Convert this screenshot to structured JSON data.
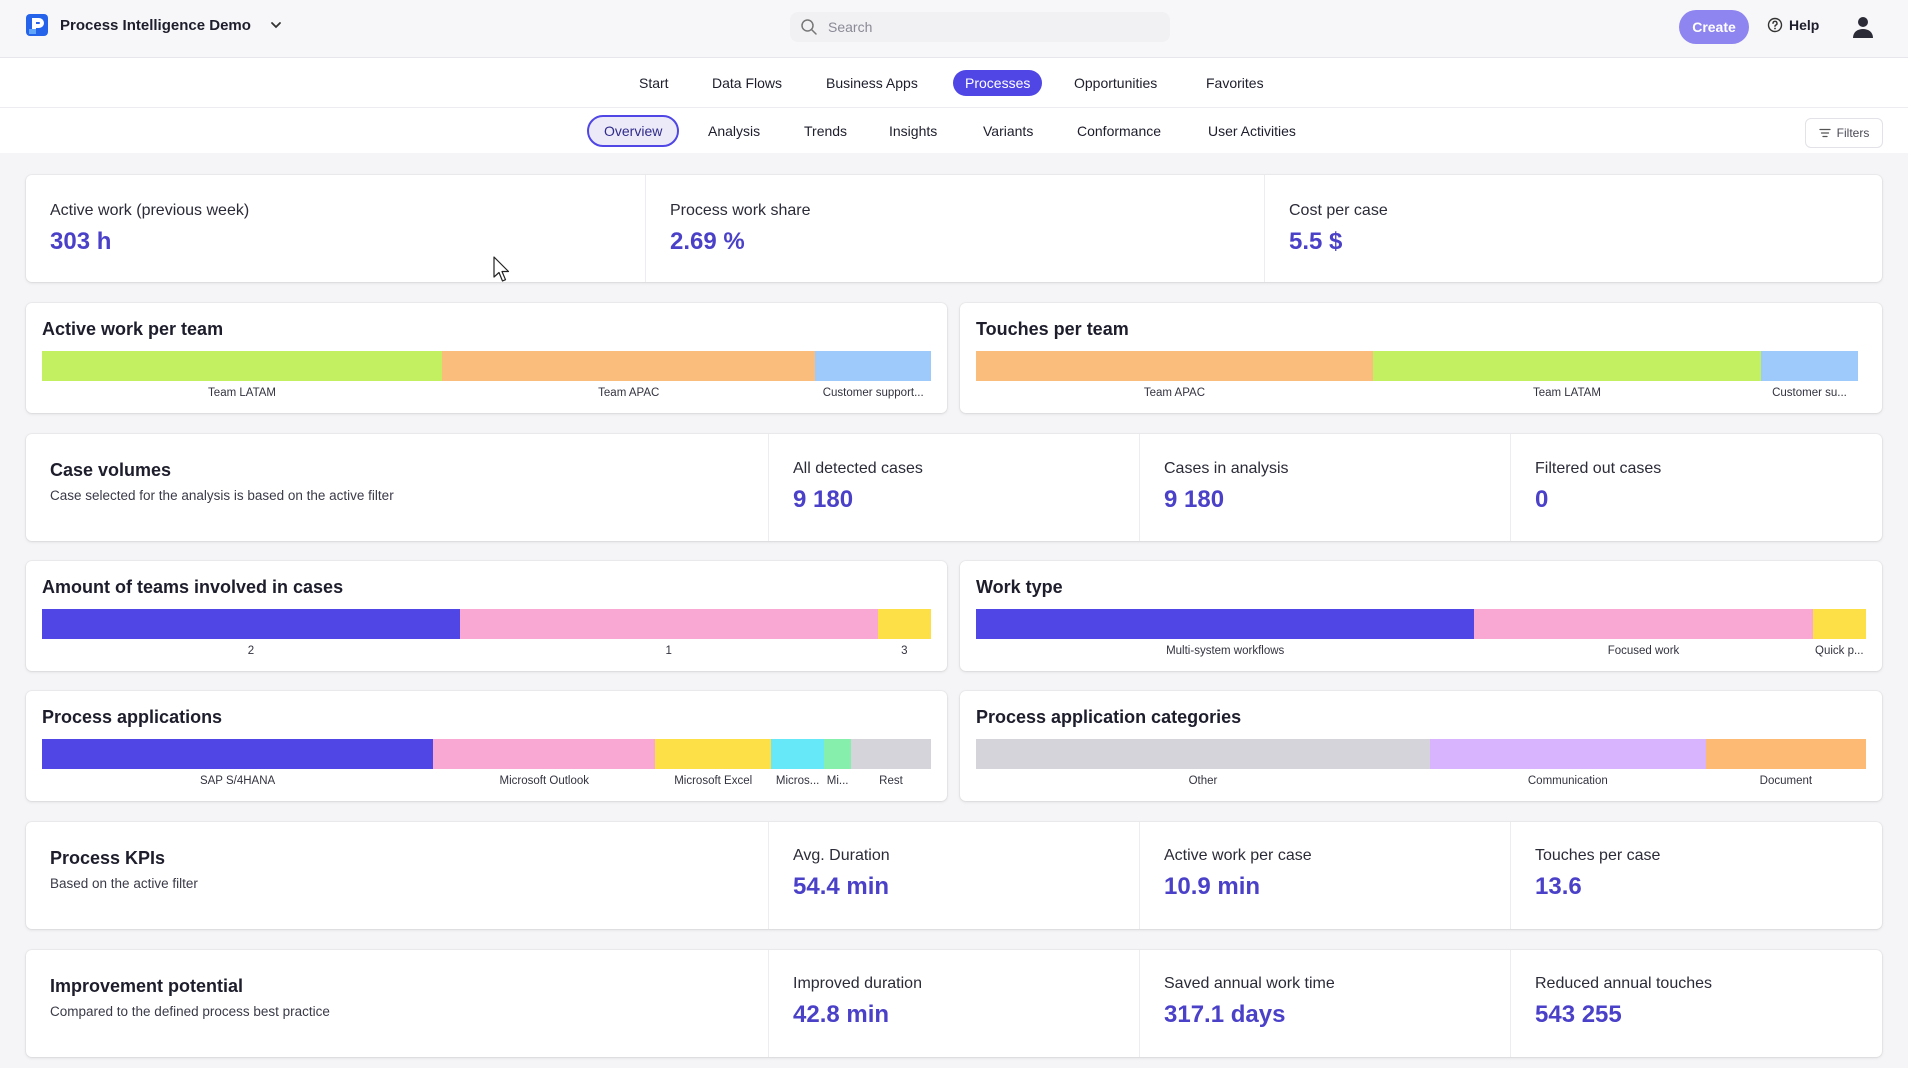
{
  "app": {
    "name": "Process Intelligence Demo",
    "search_placeholder": "Search",
    "create_label": "Create",
    "help_label": "Help"
  },
  "main_tabs": [
    {
      "label": "Start"
    },
    {
      "label": "Data Flows"
    },
    {
      "label": "Business Apps"
    },
    {
      "label": "Processes",
      "active": true
    },
    {
      "label": "Opportunities"
    },
    {
      "label": "Favorites"
    }
  ],
  "sub_tabs": [
    {
      "label": "Overview",
      "active": true
    },
    {
      "label": "Analysis"
    },
    {
      "label": "Trends"
    },
    {
      "label": "Insights"
    },
    {
      "label": "Variants"
    },
    {
      "label": "Conformance"
    },
    {
      "label": "User Activities"
    }
  ],
  "filters_label": "Filters",
  "top_kpis": [
    {
      "label": "Active work (previous week)",
      "value": "303 h"
    },
    {
      "label": "Process work share",
      "value": "2.69 %"
    },
    {
      "label": "Cost per case",
      "value": "5.5 $"
    }
  ],
  "active_work_per_team": {
    "title": "Active work per team",
    "segments": [
      {
        "label": "Team LATAM",
        "share": 0.45,
        "color": "#c3f060"
      },
      {
        "label": "Team APAC",
        "share": 0.42,
        "color": "#fbbd7c"
      },
      {
        "label": "Customer support...",
        "share": 0.13,
        "color": "#9ec9fb"
      }
    ]
  },
  "touches_per_team": {
    "title": "Touches per team",
    "segments": [
      {
        "label": "Team APAC",
        "share": 0.45,
        "color": "#fbbd7c"
      },
      {
        "label": "Team LATAM",
        "share": 0.44,
        "color": "#c3f060"
      },
      {
        "label": "Customer su...",
        "share": 0.11,
        "color": "#9ec9fb"
      }
    ]
  },
  "case_volumes": {
    "title": "Case volumes",
    "subtitle": "Case selected for the analysis is based on the active filter",
    "metrics": [
      {
        "label": "All detected cases",
        "value": "9 180"
      },
      {
        "label": "Cases in analysis",
        "value": "9 180"
      },
      {
        "label": "Filtered out cases",
        "value": "0"
      }
    ]
  },
  "teams_involved": {
    "title": "Amount of teams involved in cases",
    "segments": [
      {
        "label": "2",
        "share": 0.47,
        "color": "#4f46e5"
      },
      {
        "label": "1",
        "share": 0.47,
        "color": "#f9a8d4"
      },
      {
        "label": "3",
        "share": 0.06,
        "color": "#fde047"
      }
    ]
  },
  "work_type": {
    "title": "Work type",
    "segments": [
      {
        "label": "Multi-system workflows",
        "share": 0.56,
        "color": "#4f46e5"
      },
      {
        "label": "Focused work",
        "share": 0.38,
        "color": "#f9a8d4"
      },
      {
        "label": "Quick p...",
        "share": 0.06,
        "color": "#fde047"
      }
    ]
  },
  "process_applications": {
    "title": "Process applications",
    "segments": [
      {
        "label": "SAP S/4HANA",
        "share": 0.44,
        "color": "#4f46e5"
      },
      {
        "label": "Microsoft Outlook",
        "share": 0.25,
        "color": "#f9a8d4"
      },
      {
        "label": "Microsoft Excel",
        "share": 0.13,
        "color": "#fde047"
      },
      {
        "label": "Micros...",
        "share": 0.06,
        "color": "#67e8f9"
      },
      {
        "label": "Mi...",
        "share": 0.03,
        "color": "#86efac"
      },
      {
        "label": "Rest",
        "share": 0.09,
        "color": "#d4d4da"
      }
    ]
  },
  "process_application_categories": {
    "title": "Process application categories",
    "segments": [
      {
        "label": "Other",
        "share": 0.51,
        "color": "#d4d4da"
      },
      {
        "label": "Communication",
        "share": 0.31,
        "color": "#d8b4fe"
      },
      {
        "label": "Document",
        "share": 0.18,
        "color": "#fdba74"
      }
    ]
  },
  "process_kpis": {
    "title": "Process KPIs",
    "subtitle": "Based on the active filter",
    "metrics": [
      {
        "label": "Avg. Duration",
        "value": "54.4 min"
      },
      {
        "label": "Active work per case",
        "value": "10.9 min"
      },
      {
        "label": "Touches per case",
        "value": "13.6"
      }
    ]
  },
  "improvement_potential": {
    "title": "Improvement potential",
    "subtitle": "Compared to the defined process best practice",
    "metrics": [
      {
        "label": "Improved duration",
        "value": "42.8 min"
      },
      {
        "label": "Saved annual work time",
        "value": "317.1 days"
      },
      {
        "label": "Reduced annual touches",
        "value": "543 255"
      }
    ]
  }
}
